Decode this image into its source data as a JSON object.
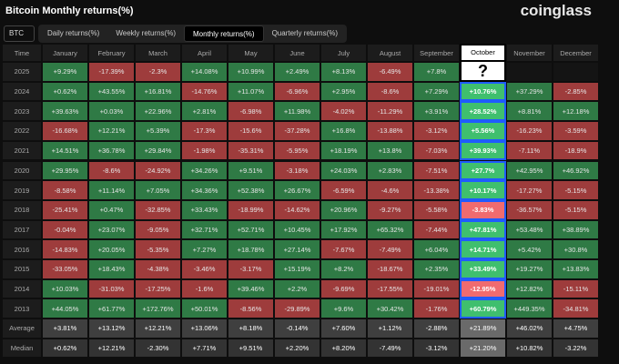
{
  "header": {
    "title": "Bitcoin Monthly returns(%)",
    "brand": "coinglass"
  },
  "selector": "BTC",
  "tabs": [
    "Daily returns(%)",
    "Weekly returns(%)",
    "Monthly returns(%)",
    "Quarterly returns(%)"
  ],
  "table": {
    "columns": [
      "Time",
      "January",
      "February",
      "March",
      "April",
      "May",
      "June",
      "July",
      "August",
      "September",
      "October",
      "November",
      "December"
    ],
    "rows": [
      [
        "2025",
        "+9.29%",
        "-17.39%",
        "-2.3%",
        "+14.08%",
        "+10.99%",
        "+2.49%",
        "+8.13%",
        "-6.49%",
        "+7.8%",
        "?"
      ],
      [
        "2024",
        "+0.62%",
        "+43.55%",
        "+16.81%",
        "-14.76%",
        "+11.07%",
        "-6.96%",
        "+2.95%",
        "-8.6%",
        "+7.29%",
        "+10.76%",
        "+37.29%",
        "-2.85%"
      ],
      [
        "2023",
        "+39.63%",
        "+0.03%",
        "+22.96%",
        "+2.81%",
        "-6.98%",
        "+11.98%",
        "-4.02%",
        "-11.29%",
        "+3.91%",
        "+28.52%",
        "+8.81%",
        "+12.18%"
      ],
      [
        "2022",
        "-16.68%",
        "+12.21%",
        "+5.39%",
        "-17.3%",
        "-15.6%",
        "-37.28%",
        "+16.8%",
        "-13.88%",
        "-3.12%",
        "+5.56%",
        "-16.23%",
        "-3.59%"
      ],
      [
        "2021",
        "+14.51%",
        "+36.78%",
        "+29.84%",
        "-1.98%",
        "-35.31%",
        "-5.95%",
        "+18.19%",
        "+13.8%",
        "-7.03%",
        "+39.93%",
        "-7.11%",
        "-18.9%"
      ],
      [
        "2020",
        "+29.95%",
        "-8.6%",
        "-24.92%",
        "+34.26%",
        "+9.51%",
        "-3.18%",
        "+24.03%",
        "+2.83%",
        "-7.51%",
        "+27.7%",
        "+42.95%",
        "+46.92%"
      ],
      [
        "2019",
        "-8.58%",
        "+11.14%",
        "+7.05%",
        "+34.36%",
        "+52.38%",
        "+26.67%",
        "-6.59%",
        "-4.6%",
        "-13.38%",
        "+10.17%",
        "-17.27%",
        "-5.15%"
      ],
      [
        "2018",
        "-25.41%",
        "+0.47%",
        "-32.85%",
        "+33.43%",
        "-18.99%",
        "-14.62%",
        "+20.96%",
        "-9.27%",
        "-5.58%",
        "-3.83%",
        "-36.57%",
        "-5.15%"
      ],
      [
        "2017",
        "-0.04%",
        "+23.07%",
        "-9.05%",
        "+32.71%",
        "+52.71%",
        "+10.45%",
        "+17.92%",
        "+65.32%",
        "-7.44%",
        "+47.81%",
        "+53.48%",
        "+38.89%"
      ],
      [
        "2016",
        "-14.83%",
        "+20.05%",
        "-5.35%",
        "+7.27%",
        "+18.78%",
        "+27.14%",
        "-7.67%",
        "-7.49%",
        "+6.04%",
        "+14.71%",
        "+5.42%",
        "+30.8%"
      ],
      [
        "2015",
        "-33.05%",
        "+18.43%",
        "-4.38%",
        "-3.46%",
        "-3.17%",
        "+15.19%",
        "+8.2%",
        "-18.67%",
        "+2.35%",
        "+33.49%",
        "+19.27%",
        "+13.83%"
      ],
      [
        "2014",
        "+10.03%",
        "-31.03%",
        "-17.25%",
        "-1.6%",
        "+39.46%",
        "+2.2%",
        "-9.69%",
        "-17.55%",
        "-19.01%",
        "-12.95%",
        "+12.82%",
        "-15.11%"
      ],
      [
        "2013",
        "+44.05%",
        "+61.77%",
        "+172.76%",
        "+50.01%",
        "-8.56%",
        "-29.89%",
        "+9.6%",
        "+30.42%",
        "-1.76%",
        "+60.79%",
        "+449.35%",
        "-34.81%"
      ],
      [
        "Average",
        "+3.81%",
        "+13.12%",
        "+12.21%",
        "+13.06%",
        "+8.18%",
        "-0.14%",
        "+7.60%",
        "+1.12%",
        "-2.88%",
        "+21.89%",
        "+46.02%",
        "+4.75%"
      ],
      [
        "Median",
        "+0.62%",
        "+12.21%",
        "-2.30%",
        "+7.71%",
        "+9.51%",
        "+2.20%",
        "+8.20%",
        "-7.49%",
        "-3.12%",
        "+21.20%",
        "+10.82%",
        "-3.22%"
      ]
    ]
  }
}
